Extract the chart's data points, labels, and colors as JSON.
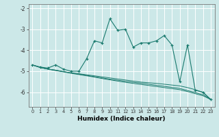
{
  "title": "",
  "xlabel": "Humidex (Indice chaleur)",
  "bg_color": "#cce8e8",
  "grid_color": "#ffffff",
  "line_color": "#1a7a6e",
  "x": [
    0,
    1,
    2,
    3,
    4,
    5,
    6,
    7,
    8,
    9,
    10,
    11,
    12,
    13,
    14,
    15,
    16,
    17,
    18,
    19,
    20,
    21,
    22,
    23
  ],
  "line1": [
    -4.7,
    -4.8,
    -4.85,
    -4.7,
    -4.9,
    -5.0,
    -5.0,
    -4.4,
    -3.55,
    -3.65,
    -2.5,
    -3.05,
    -3.0,
    -3.85,
    -3.65,
    -3.65,
    -3.55,
    -3.3,
    -3.75,
    -5.5,
    -3.75,
    -5.9,
    -6.0,
    -6.35
  ],
  "line2": [
    -4.7,
    -4.82,
    -4.9,
    -4.95,
    -5.02,
    -5.08,
    -5.12,
    -5.17,
    -5.22,
    -5.27,
    -5.32,
    -5.37,
    -5.42,
    -5.47,
    -5.52,
    -5.55,
    -5.58,
    -5.62,
    -5.66,
    -5.7,
    -5.78,
    -5.88,
    -6.02,
    -6.35
  ],
  "line3": [
    -4.7,
    -4.82,
    -4.9,
    -4.95,
    -5.02,
    -5.08,
    -5.14,
    -5.2,
    -5.26,
    -5.32,
    -5.38,
    -5.43,
    -5.48,
    -5.53,
    -5.57,
    -5.62,
    -5.67,
    -5.72,
    -5.77,
    -5.82,
    -5.92,
    -6.02,
    -6.12,
    -6.35
  ],
  "line4": [
    -4.7,
    -4.82,
    -4.9,
    -4.97,
    -5.03,
    -5.1,
    -5.16,
    -5.22,
    -5.28,
    -5.35,
    -5.41,
    -5.47,
    -5.53,
    -5.58,
    -5.63,
    -5.68,
    -5.73,
    -5.78,
    -5.83,
    -5.88,
    -5.97,
    -6.07,
    -6.17,
    -6.35
  ],
  "ylim": [
    -6.7,
    -1.8
  ],
  "xlim": [
    -0.5,
    23.5
  ],
  "yticks": [
    -6,
    -5,
    -4,
    -3,
    -2
  ],
  "xticks": [
    0,
    1,
    2,
    3,
    4,
    5,
    6,
    7,
    8,
    9,
    10,
    11,
    12,
    13,
    14,
    15,
    16,
    17,
    18,
    19,
    20,
    21,
    22,
    23
  ]
}
